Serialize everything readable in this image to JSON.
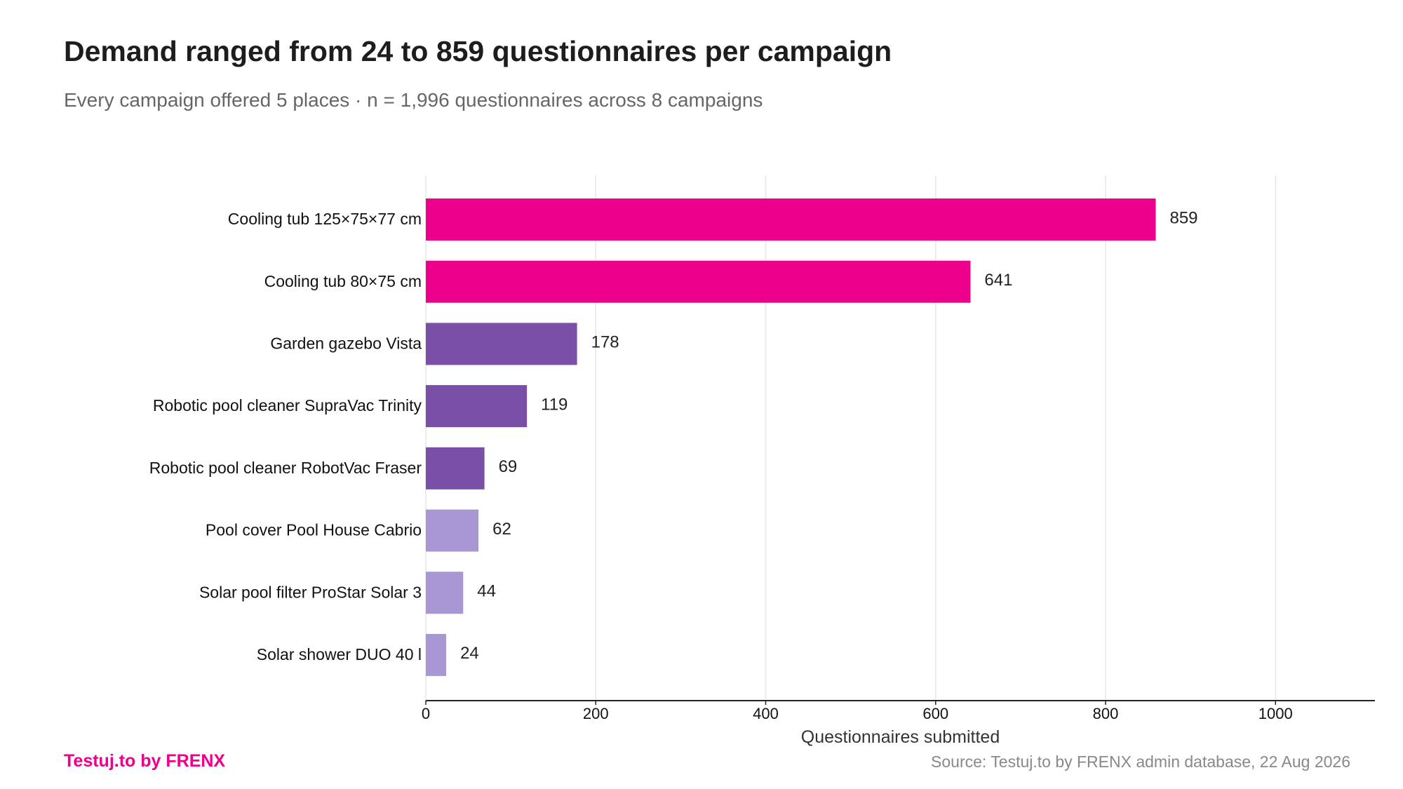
{
  "header": {
    "title": "Demand ranged from 24 to 859 questionnaires per campaign",
    "subtitle": "Every campaign offered 5 places · n = 1,996 questionnaires across 8 campaigns"
  },
  "footer": {
    "brand": "Testuj.to by FRENX",
    "source": "Source: Testuj.to by FRENX admin database, 22 Aug 2026"
  },
  "colors": {
    "brand": "#ec008c",
    "top_tier": "#ec008c",
    "mid_tier": "#7a4fa8",
    "low_tier": "#a897d2",
    "grid": "#e6e6e6",
    "axis": "#222222"
  },
  "chart_data": {
    "type": "bar",
    "orientation": "horizontal",
    "categories": [
      "Cooling tub 125×75×77 cm",
      "Cooling tub 80×75 cm",
      "Garden gazebo Vista",
      "Robotic pool cleaner SupraVac Trinity",
      "Robotic pool cleaner RobotVac Fraser",
      "Pool cover Pool House Cabrio",
      "Solar pool filter ProStar Solar 3",
      "Solar shower DUO 40 l"
    ],
    "values": [
      859,
      641,
      178,
      119,
      69,
      62,
      44,
      24
    ],
    "data_labels": [
      "859",
      "641",
      "178",
      "119",
      "69",
      "62",
      "44",
      "24"
    ],
    "bar_tiers": [
      "top_tier",
      "top_tier",
      "mid_tier",
      "mid_tier",
      "mid_tier",
      "low_tier",
      "low_tier",
      "low_tier"
    ],
    "xlabel": "Questionnaires submitted",
    "xticks": [
      0,
      200,
      400,
      600,
      800,
      1000
    ],
    "xtick_labels": [
      "0",
      "200",
      "400",
      "600",
      "800",
      "1000"
    ],
    "xlim": [
      0,
      1117
    ],
    "grid": "vertical"
  }
}
